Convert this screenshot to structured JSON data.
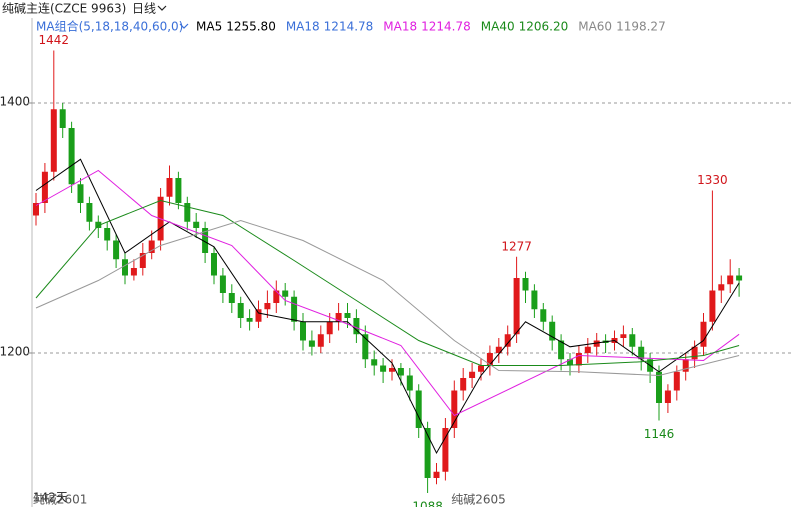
{
  "chart_data": {
    "type": "candlestick",
    "title": "纯碱主连(CZCE 9963)",
    "period": "日线",
    "indicator": "MA组合(5,18,18,40,60,0)",
    "legend": [
      {
        "text": "MA5",
        "value": "1255.80",
        "color": "#000000"
      },
      {
        "text": "MA18",
        "value": "1214.78",
        "color": "#3a6fd8"
      },
      {
        "text": "MA18",
        "value": "1214.78",
        "color": "#e020e0"
      },
      {
        "text": "MA40",
        "value": "1206.20",
        "color": "#1a8a1a"
      },
      {
        "text": "MA60",
        "value": "1198.27",
        "color": "#888888"
      }
    ],
    "day_count": "142天",
    "up_color": "#e0191b",
    "down_color": "#1a9e1a",
    "ylim": [
      1078,
      1468
    ],
    "yticks": [
      1200,
      1400
    ],
    "grid": true,
    "categories": [
      null,
      "纯碱2601",
      null,
      null,
      null,
      null,
      null,
      null,
      null,
      null,
      null,
      null,
      null,
      null,
      null,
      null,
      null,
      null,
      null,
      null,
      null,
      null,
      null,
      null,
      null,
      null,
      null,
      null,
      null,
      null,
      null,
      null,
      null,
      null,
      null,
      null,
      null,
      null,
      null,
      null,
      null,
      null,
      null,
      null,
      null,
      null,
      null,
      null,
      "纯碱2605",
      null,
      null,
      null,
      null,
      null,
      null,
      null,
      null,
      null,
      null,
      null,
      null,
      null,
      null,
      null,
      null,
      null,
      null,
      null,
      null,
      null,
      null,
      null,
      null,
      null,
      null,
      null,
      null,
      null,
      null,
      null
    ],
    "open": [
      1310,
      1320,
      1345,
      1395,
      1380,
      1335,
      1320,
      1305,
      1300,
      1290,
      1275,
      1262,
      1268,
      1280,
      1290,
      1325,
      1340,
      1320,
      1305,
      1300,
      1280,
      1262,
      1248,
      1240,
      1228,
      1225,
      1235,
      1240,
      1250,
      1245,
      1225,
      1210,
      1205,
      1215,
      1225,
      1232,
      1228,
      1215,
      1195,
      1190,
      1185,
      1188,
      1182,
      1170,
      1140,
      1100,
      1105,
      1140,
      1170,
      1180,
      1185,
      1190,
      1200,
      1205,
      1215,
      1260,
      1250,
      1235,
      1225,
      1210,
      1195,
      1190,
      1200,
      1205,
      1210,
      1208,
      1212,
      1215,
      1205,
      1195,
      1185,
      1160,
      1170,
      1185,
      1195,
      1205,
      1225,
      1250,
      1255,
      1262
    ],
    "high": [
      1328,
      1352,
      1442,
      1400,
      1385,
      1340,
      1325,
      1310,
      1305,
      1295,
      1280,
      1275,
      1288,
      1298,
      1332,
      1350,
      1345,
      1325,
      1312,
      1305,
      1285,
      1268,
      1255,
      1245,
      1235,
      1242,
      1250,
      1258,
      1256,
      1250,
      1232,
      1218,
      1222,
      1232,
      1240,
      1240,
      1235,
      1222,
      1202,
      1196,
      1195,
      1192,
      1188,
      1175,
      1145,
      1112,
      1148,
      1178,
      1188,
      1192,
      1196,
      1206,
      1212,
      1222,
      1277,
      1265,
      1255,
      1240,
      1230,
      1215,
      1200,
      1206,
      1212,
      1216,
      1215,
      1218,
      1222,
      1220,
      1210,
      1200,
      1190,
      1175,
      1190,
      1200,
      1210,
      1232,
      1330,
      1262,
      1275,
      1268
    ],
    "low": [
      1302,
      1312,
      1338,
      1372,
      1328,
      1312,
      1298,
      1292,
      1282,
      1268,
      1255,
      1258,
      1262,
      1275,
      1282,
      1318,
      1315,
      1298,
      1292,
      1272,
      1255,
      1240,
      1232,
      1220,
      1218,
      1220,
      1228,
      1232,
      1238,
      1218,
      1202,
      1198,
      1200,
      1208,
      1218,
      1220,
      1208,
      1188,
      1182,
      1176,
      1178,
      1174,
      1162,
      1132,
      1088,
      1095,
      1098,
      1132,
      1162,
      1172,
      1178,
      1182,
      1192,
      1198,
      1208,
      1240,
      1228,
      1218,
      1202,
      1186,
      1182,
      1184,
      1192,
      1198,
      1200,
      1202,
      1205,
      1198,
      1186,
      1176,
      1146,
      1152,
      1162,
      1178,
      1188,
      1198,
      1218,
      1240,
      1248,
      1245
    ],
    "close": [
      1320,
      1345,
      1395,
      1380,
      1335,
      1320,
      1305,
      1300,
      1290,
      1275,
      1262,
      1268,
      1280,
      1290,
      1325,
      1340,
      1320,
      1305,
      1300,
      1280,
      1262,
      1248,
      1240,
      1228,
      1225,
      1235,
      1240,
      1250,
      1245,
      1225,
      1210,
      1205,
      1215,
      1225,
      1232,
      1228,
      1215,
      1195,
      1190,
      1185,
      1188,
      1182,
      1170,
      1140,
      1100,
      1105,
      1140,
      1170,
      1180,
      1185,
      1190,
      1200,
      1205,
      1215,
      1260,
      1250,
      1235,
      1225,
      1210,
      1195,
      1190,
      1200,
      1205,
      1210,
      1208,
      1212,
      1215,
      1205,
      1195,
      1185,
      1160,
      1170,
      1185,
      1195,
      1205,
      1225,
      1250,
      1255,
      1262,
      1258
    ],
    "annotations": [
      "1442",
      "1330",
      "1277",
      "1088",
      "1146"
    ],
    "series": [
      {
        "color": "#000000",
        "x": [
          0,
          5,
          10,
          15,
          20,
          25,
          30,
          35,
          40,
          45,
          50,
          55,
          60,
          65,
          70,
          75,
          79
        ],
        "values": [
          1330,
          1355,
          1280,
          1305,
          1285,
          1232,
          1225,
          1225,
          1192,
          1120,
          1182,
          1225,
          1205,
          1210,
          1185,
          1210,
          1256
        ]
      },
      {
        "color": "#e020e0",
        "x": [
          0,
          7,
          13,
          22,
          28,
          34,
          41,
          47,
          54,
          61,
          68,
          75,
          79
        ],
        "values": [
          1318,
          1346,
          1310,
          1286,
          1242,
          1226,
          1206,
          1150,
          1174,
          1198,
          1196,
          1194,
          1215
        ]
      },
      {
        "color": "#1a8a1a",
        "x": [
          0,
          7,
          14,
          21,
          29,
          36,
          43,
          50,
          59,
          68,
          75,
          79
        ],
        "values": [
          1244,
          1302,
          1322,
          1310,
          1274,
          1242,
          1210,
          1190,
          1190,
          1193,
          1198,
          1206
        ]
      },
      {
        "color": "#999999",
        "x": [
          0,
          7,
          14,
          23,
          30,
          39,
          47,
          52,
          61,
          70,
          79
        ],
        "values": [
          1236,
          1258,
          1286,
          1306,
          1290,
          1258,
          1210,
          1186,
          1185,
          1182,
          1198
        ]
      }
    ]
  }
}
